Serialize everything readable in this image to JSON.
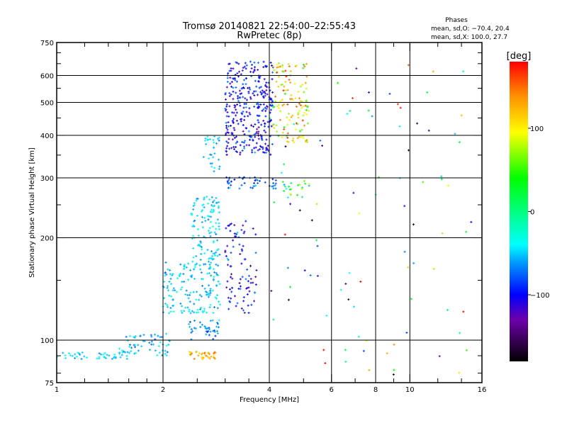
{
  "chart_data": {
    "type": "scatter",
    "title": "Tromsø 20140821 22:54:00–22:55:43",
    "subtitle": "RwPretec (8p)",
    "stats": {
      "heading": "Phases",
      "o_line": "mean, sd,O: −70.4, 20.4",
      "x_line": "mean, sd,X: 100.0, 27.7"
    },
    "xlabel": "Frequency [MHz]",
    "ylabel": "Stationary phase Virtual Height [km]",
    "xscale": "log",
    "yscale": "log",
    "xlim": [
      1,
      16
    ],
    "ylim": [
      75,
      750
    ],
    "grid": true,
    "xticks": [
      1,
      2,
      4,
      6,
      8,
      10,
      16
    ],
    "xtick_labels": [
      "1",
      "2",
      "4",
      "6",
      "8",
      "10",
      "16"
    ],
    "xgrid": [
      2,
      4,
      6,
      8,
      10
    ],
    "yticks": [
      75,
      100,
      200,
      300,
      400,
      500,
      600,
      750
    ],
    "ytick_labels": [
      "75",
      "100",
      "200",
      "300",
      "400",
      "500",
      "600",
      "750"
    ],
    "ygrid": [
      100,
      200,
      300,
      400,
      500,
      600
    ],
    "colorbar": {
      "label": "[deg]",
      "range": [
        -180,
        180
      ],
      "ticks": [
        100,
        0,
        -100
      ],
      "tick_labels": [
        "100",
        "0",
        "−100"
      ]
    },
    "clusters_note_units": "freq MHz, height km, phase deg",
    "clusters": [
      {
        "f": [
          1.0,
          1.6
        ],
        "h": [
          88,
          92
        ],
        "phase": -50,
        "sd": 10,
        "n": 40
      },
      {
        "f": [
          1.5,
          2.1
        ],
        "h": [
          90,
          105
        ],
        "phase": -55,
        "sd": 12,
        "n": 60
      },
      {
        "f": [
          2.35,
          2.85
        ],
        "h": [
          88,
          93
        ],
        "phase": 130,
        "sd": 12,
        "n": 35
      },
      {
        "f": [
          2.35,
          2.9
        ],
        "h": [
          100,
          115
        ],
        "phase": -65,
        "sd": 15,
        "n": 40
      },
      {
        "f": [
          2.0,
          2.9
        ],
        "h": [
          120,
          170
        ],
        "phase": -50,
        "sd": 12,
        "n": 160
      },
      {
        "f": [
          2.4,
          2.9
        ],
        "h": [
          170,
          265
        ],
        "phase": -50,
        "sd": 12,
        "n": 110
      },
      {
        "f": [
          2.6,
          2.9
        ],
        "h": [
          310,
          400
        ],
        "phase": -50,
        "sd": 10,
        "n": 30
      },
      {
        "f": [
          3.0,
          3.7
        ],
        "h": [
          120,
          225
        ],
        "phase": -105,
        "sd": 25,
        "n": 90
      },
      {
        "f": [
          3.0,
          4.1
        ],
        "h": [
          350,
          660
        ],
        "phase": -100,
        "sd": 18,
        "n": 330
      },
      {
        "f": [
          3.0,
          4.2
        ],
        "h": [
          278,
          302
        ],
        "phase": -75,
        "sd": 15,
        "n": 45
      },
      {
        "f": [
          4.1,
          5.2
        ],
        "h": [
          380,
          660
        ],
        "phase": 100,
        "sd": 40,
        "n": 130
      },
      {
        "f": [
          4.3,
          5.2
        ],
        "h": [
          260,
          300
        ],
        "phase": 30,
        "sd": 40,
        "n": 22
      },
      {
        "f": [
          4.0,
          15.0
        ],
        "h": [
          76,
          660
        ],
        "phase": 20,
        "sd": 110,
        "n": 90
      }
    ]
  }
}
